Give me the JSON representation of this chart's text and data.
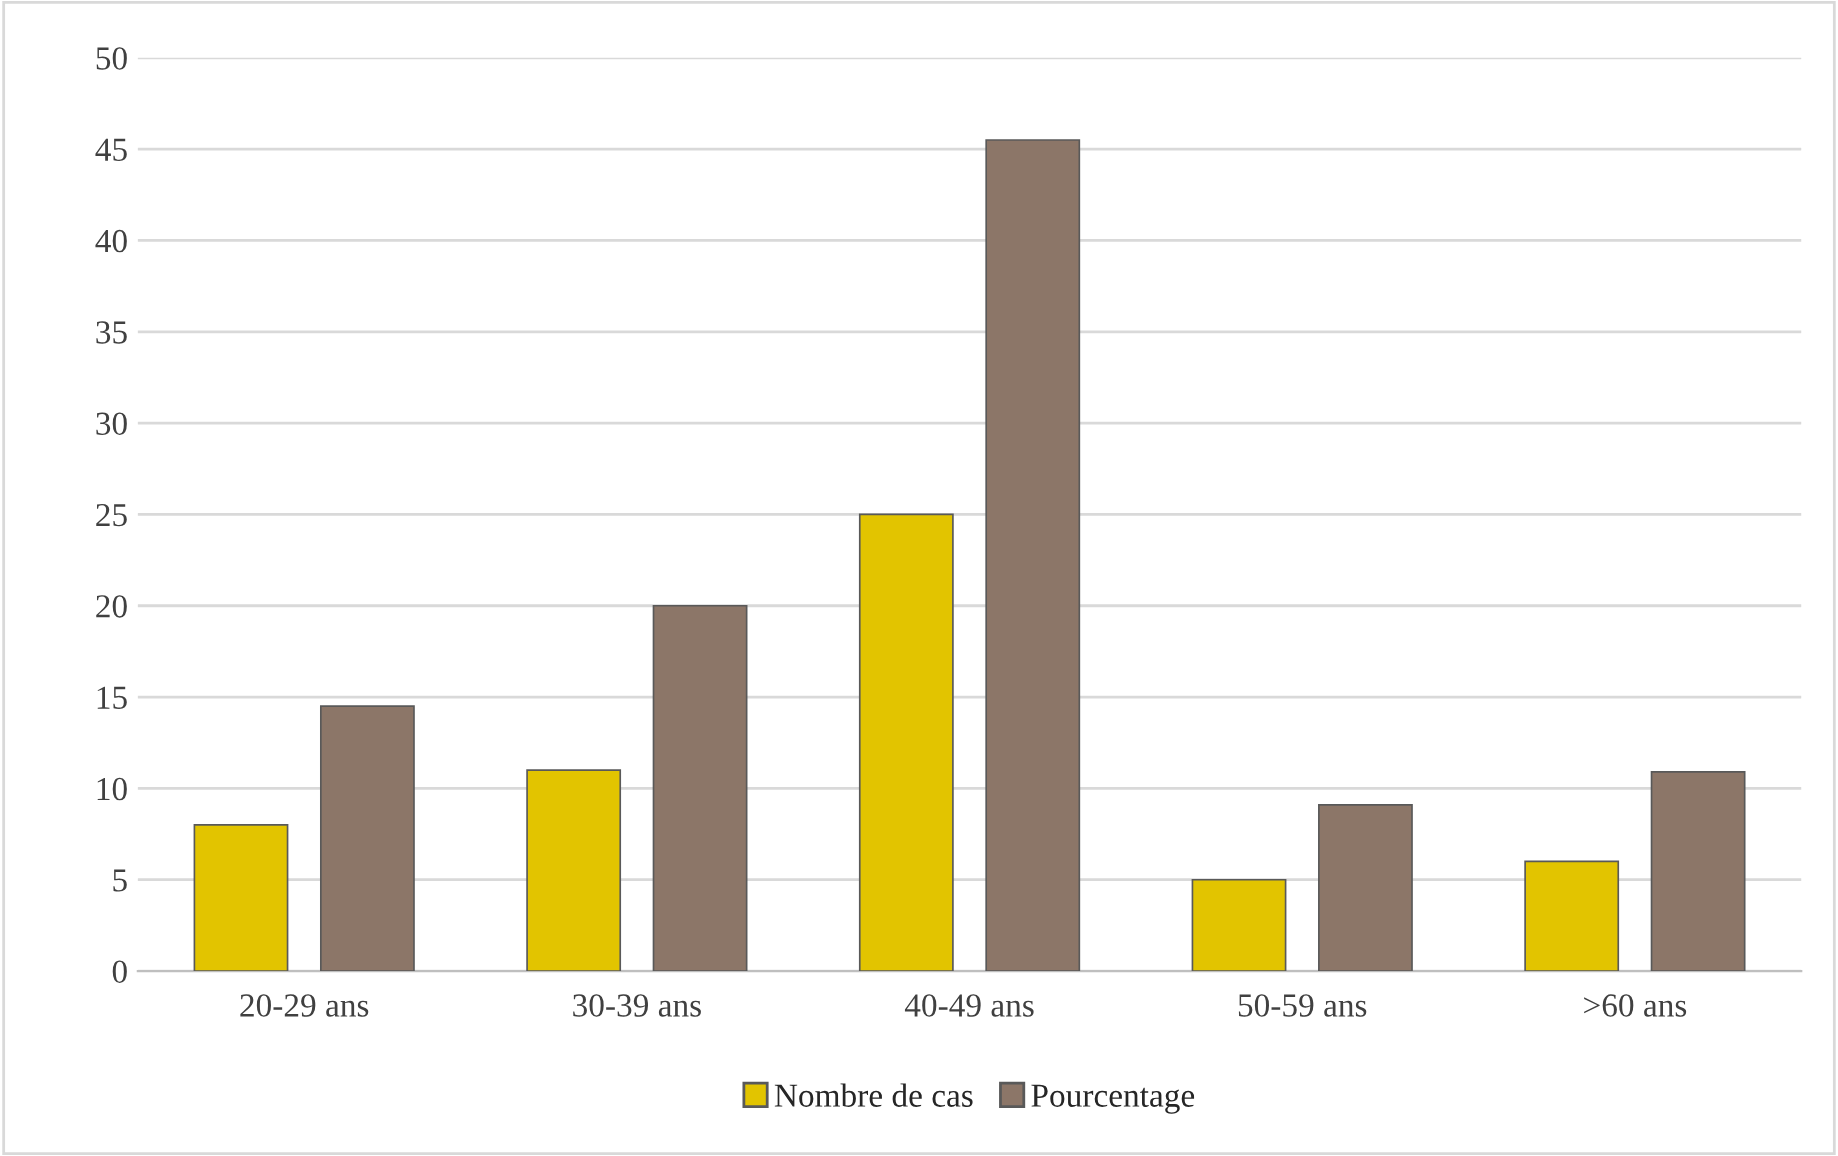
{
  "chart_data": {
    "type": "bar",
    "categories": [
      "20-29 ans",
      "30-39 ans",
      "40-49 ans",
      "50-59 ans",
      ">60 ans"
    ],
    "series": [
      {
        "name": "Nombre de cas",
        "color": "#e2c400",
        "values": [
          8,
          11,
          25,
          5,
          6
        ]
      },
      {
        "name": "Pourcentage",
        "color": "#8c7668",
        "values": [
          14.5,
          20,
          45.5,
          9.1,
          10.9
        ]
      }
    ],
    "ylim": [
      0,
      50
    ],
    "yticks": [
      0,
      5,
      10,
      15,
      20,
      25,
      30,
      35,
      40,
      45,
      50
    ],
    "grid": "y",
    "legend": "bottom"
  }
}
